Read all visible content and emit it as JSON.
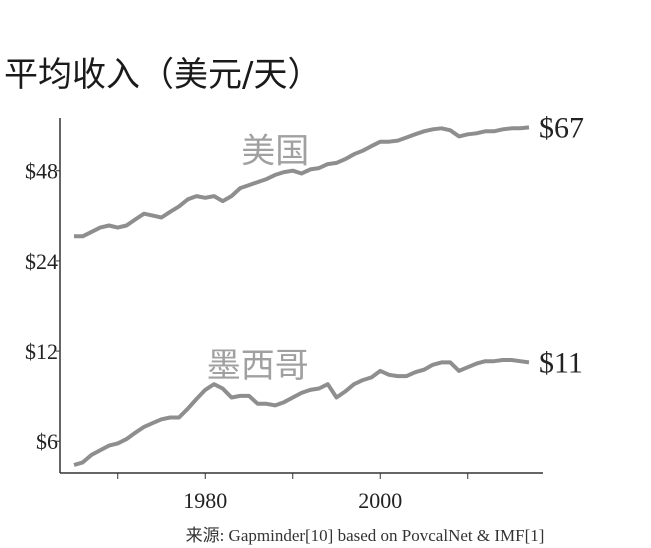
{
  "chart_data": {
    "type": "line",
    "title": "平均收入（美元/天）",
    "source": "来源: Gapminder[10] based on PovcalNet & IMF[1]",
    "x": [
      1965,
      1966,
      1967,
      1968,
      1969,
      1970,
      1971,
      1972,
      1973,
      1974,
      1975,
      1976,
      1977,
      1978,
      1979,
      1980,
      1981,
      1982,
      1983,
      1984,
      1985,
      1986,
      1987,
      1988,
      1989,
      1990,
      1991,
      1992,
      1993,
      1994,
      1995,
      1996,
      1997,
      1998,
      1999,
      2000,
      2001,
      2002,
      2003,
      2004,
      2005,
      2006,
      2007,
      2008,
      2009,
      2010,
      2011,
      2012,
      2013,
      2014,
      2015,
      2016,
      2017
    ],
    "series": [
      {
        "name": "美国",
        "color": "#8e8e8e",
        "end_label": "$67",
        "values": [
          29,
          29,
          30,
          31,
          31.5,
          31,
          31.5,
          33,
          34.5,
          34,
          33.5,
          35,
          36.5,
          38.5,
          39.5,
          39,
          39.5,
          38,
          39.5,
          42,
          43,
          44,
          45,
          46.5,
          47.5,
          48,
          47,
          48.5,
          49,
          50.5,
          51,
          52.5,
          54.5,
          56,
          58,
          60,
          60,
          60.5,
          62,
          63.5,
          65,
          66,
          66.5,
          65.5,
          62.5,
          63.5,
          64,
          65,
          65,
          66,
          66.5,
          66.5,
          67
        ]
      },
      {
        "name": "墨西哥",
        "color": "#8e8e8e",
        "end_label": "$11",
        "values": [
          5.0,
          5.1,
          5.4,
          5.6,
          5.8,
          5.9,
          6.1,
          6.4,
          6.7,
          6.9,
          7.1,
          7.2,
          7.2,
          7.7,
          8.3,
          8.9,
          9.3,
          9.0,
          8.4,
          8.5,
          8.5,
          8.0,
          8.0,
          7.9,
          8.1,
          8.4,
          8.7,
          8.9,
          9.0,
          9.3,
          8.4,
          8.8,
          9.3,
          9.6,
          9.8,
          10.3,
          10.0,
          9.9,
          9.9,
          10.2,
          10.4,
          10.8,
          11.0,
          11.0,
          10.3,
          10.6,
          10.9,
          11.1,
          11.1,
          11.2,
          11.2,
          11.1,
          11
        ]
      }
    ],
    "log_y": true,
    "ylim": [
      4.7,
      72
    ],
    "yticks": [
      {
        "value": 6,
        "label": "$6"
      },
      {
        "value": 12,
        "label": "$12"
      },
      {
        "value": 24,
        "label": "$24"
      },
      {
        "value": 48,
        "label": "$48"
      }
    ],
    "xlim": [
      1963.4,
      2018.6
    ],
    "xticks": [
      1980,
      2000
    ],
    "xminor_ticks": [
      1970,
      1990,
      2010
    ]
  }
}
